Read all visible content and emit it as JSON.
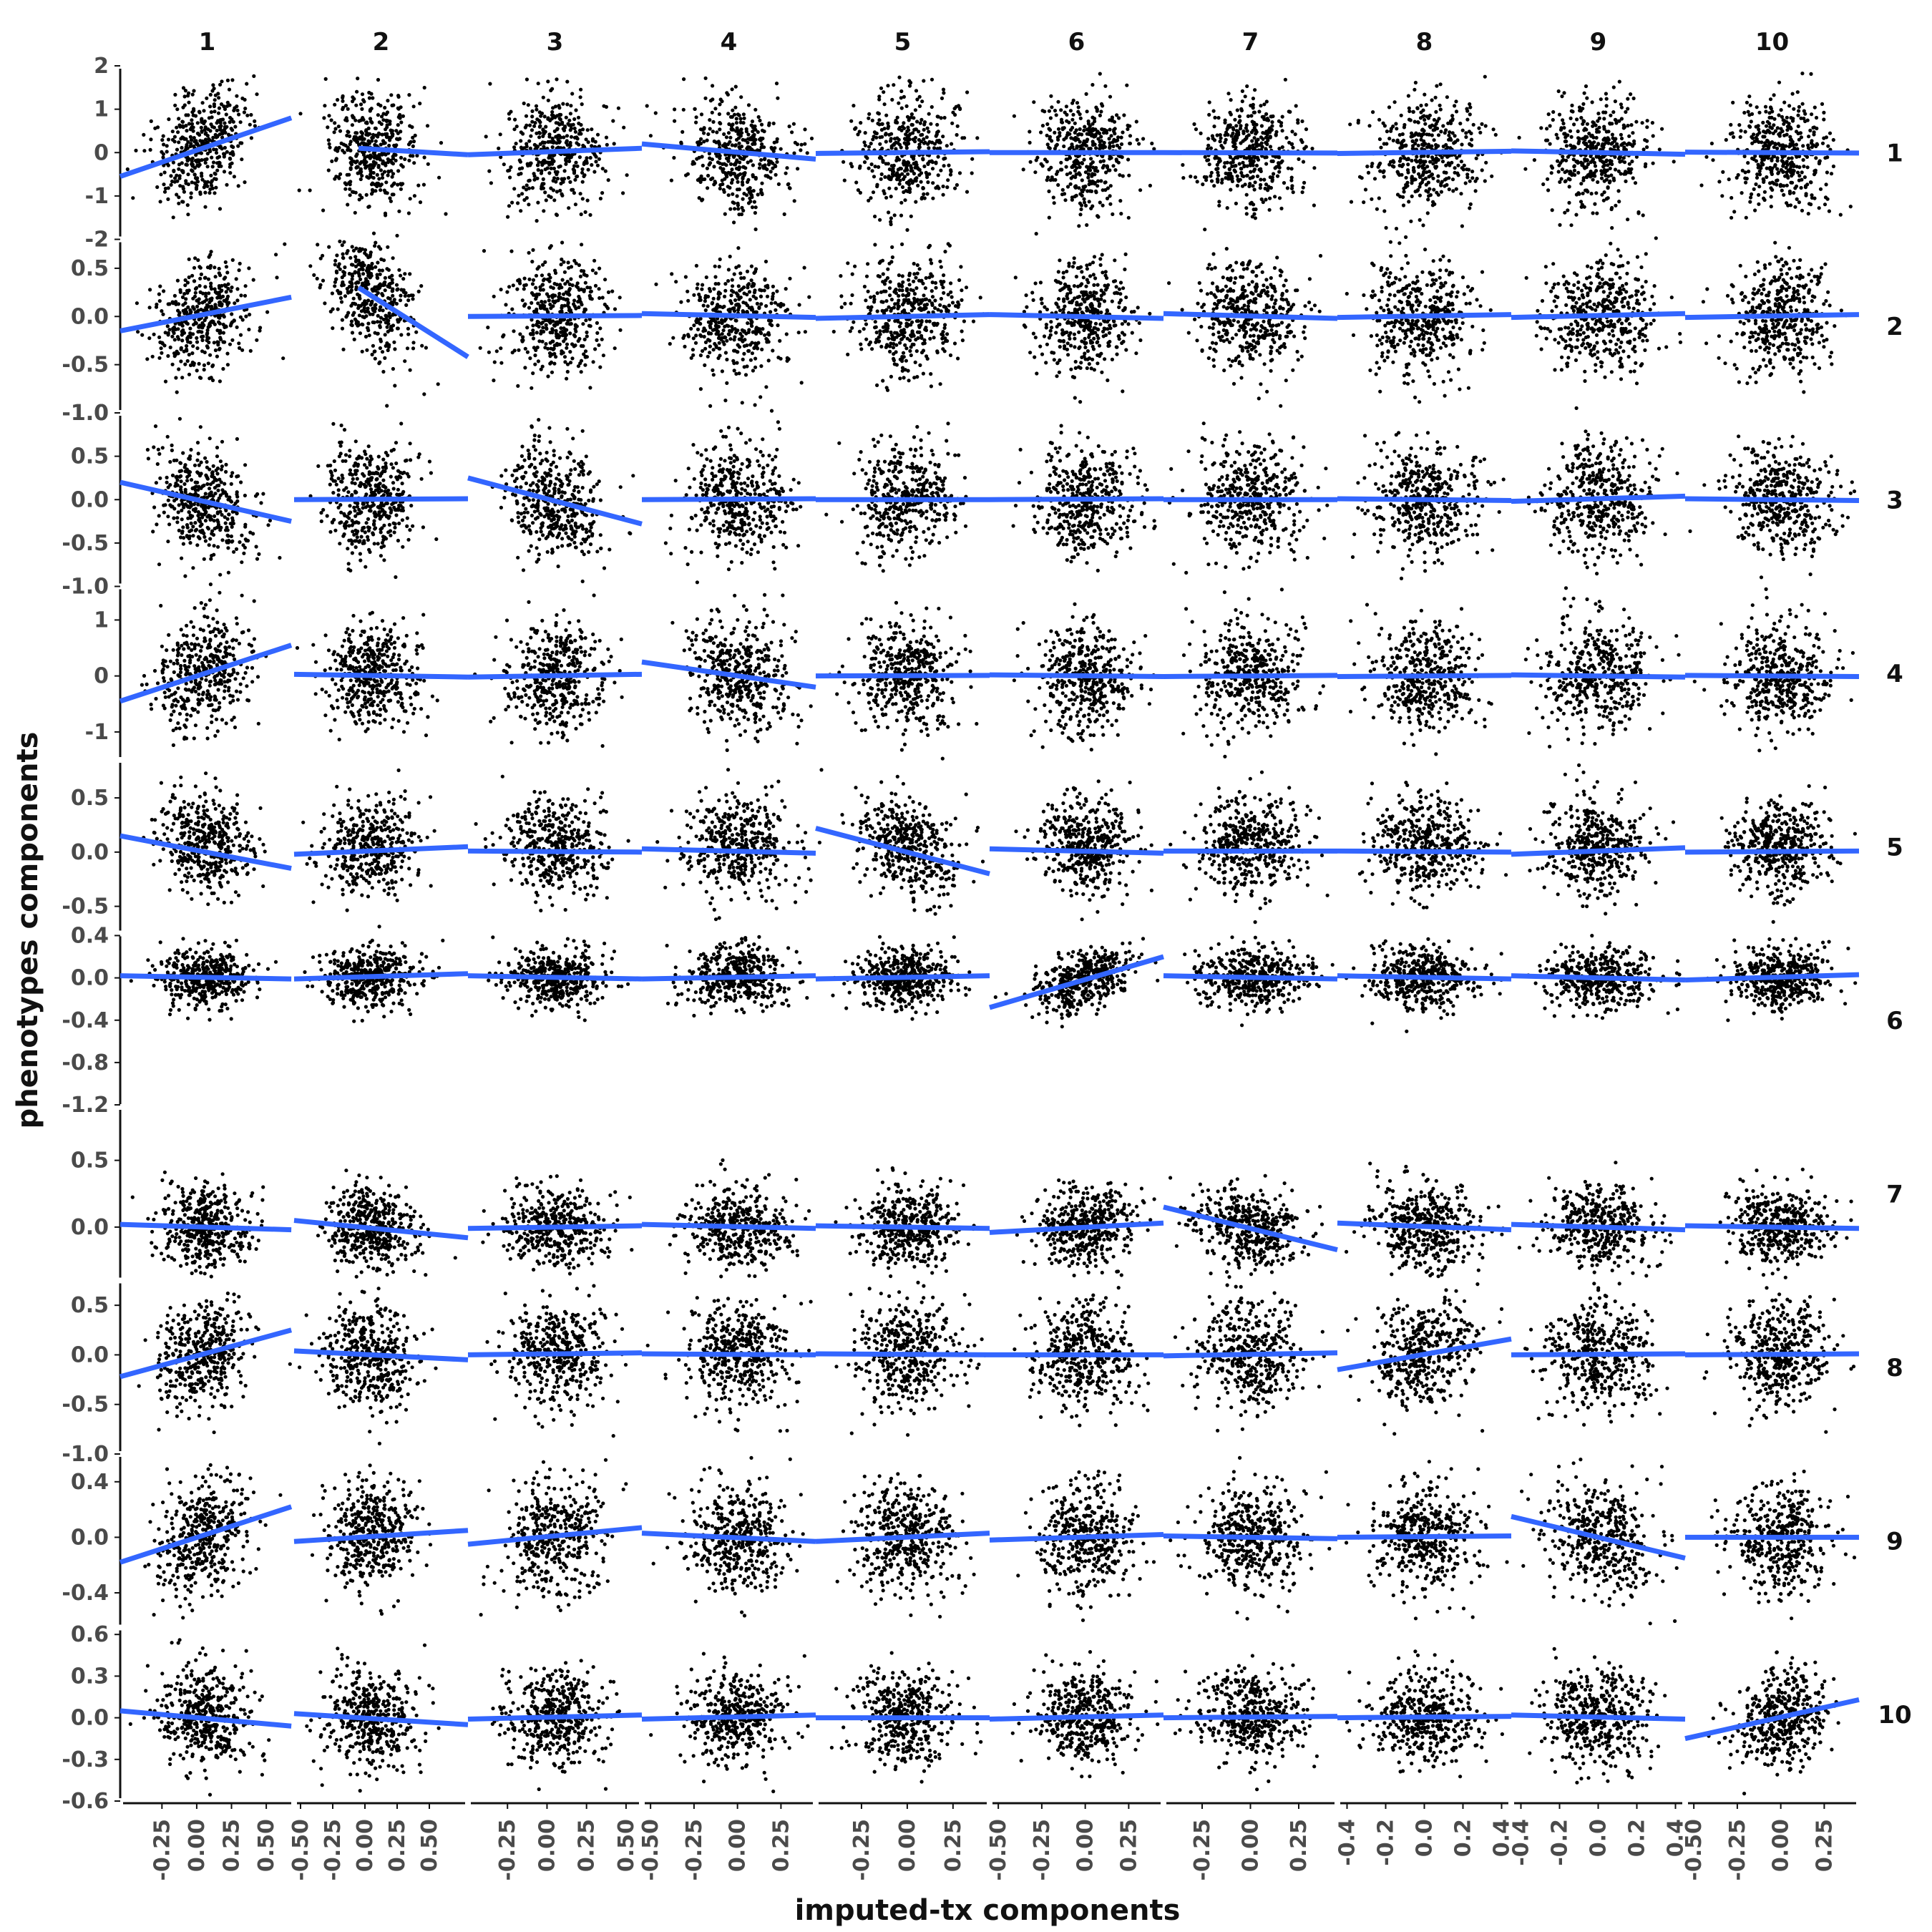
{
  "chart_data": {
    "type": "scatter",
    "layout": "facet-grid 10x10, scatter with linear fit per panel",
    "xlabel": "imputed-tx components",
    "ylabel": "phenotypes components",
    "col_labels": [
      "1",
      "2",
      "3",
      "4",
      "5",
      "6",
      "7",
      "8",
      "9",
      "10"
    ],
    "row_labels": [
      "1",
      "2",
      "3",
      "4",
      "5",
      "6",
      "7",
      "8",
      "9",
      "10"
    ],
    "point_color": "#000000",
    "fit_color": "#3366ff",
    "x_axes": [
      {
        "range": [
          -0.55,
          0.7
        ],
        "ticks": [
          "-0.25",
          "0.00",
          "0.25",
          "0.50"
        ]
      },
      {
        "range": [
          -0.55,
          0.8
        ],
        "ticks": [
          "-0.50",
          "-0.25",
          "0.00",
          "0.25",
          "0.50"
        ]
      },
      {
        "range": [
          -0.5,
          0.6
        ],
        "ticks": [
          "-0.25",
          "0.00",
          "0.25",
          "0.50"
        ]
      },
      {
        "range": [
          -0.55,
          0.45
        ],
        "ticks": [
          "-0.50",
          "-0.25",
          "0.00",
          "0.25"
        ]
      },
      {
        "range": [
          -0.5,
          0.45
        ],
        "ticks": [
          "-0.25",
          "0.00",
          "0.25"
        ]
      },
      {
        "range": [
          -0.55,
          0.45
        ],
        "ticks": [
          "-0.50",
          "-0.25",
          "0.00",
          "0.25"
        ]
      },
      {
        "range": [
          -0.45,
          0.45
        ],
        "ticks": [
          "-0.25",
          "0.00",
          "0.25"
        ]
      },
      {
        "range": [
          -0.45,
          0.45
        ],
        "ticks": [
          "-0.4",
          "-0.2",
          "0.0",
          "0.2",
          "0.4"
        ]
      },
      {
        "range": [
          -0.45,
          0.45
        ],
        "ticks": [
          "-0.4",
          "-0.2",
          "0.0",
          "0.2",
          "0.4"
        ]
      },
      {
        "range": [
          -0.55,
          0.45
        ],
        "ticks": [
          "-0.50",
          "-0.25",
          "0.00",
          "0.25"
        ]
      }
    ],
    "y_axes": [
      {
        "range": [
          -2.0,
          2.0
        ],
        "ticks": [
          "2",
          "1",
          "0",
          "-1",
          "-2"
        ]
      },
      {
        "range": [
          -1.0,
          0.8
        ],
        "ticks": [
          "0.5",
          "0.0",
          "-0.5",
          "-1.0"
        ]
      },
      {
        "range": [
          -1.0,
          1.0
        ],
        "ticks": [
          "1.0",
          "0.5",
          "0.0",
          "-0.5",
          "-1.0"
        ]
      },
      {
        "range": [
          -1.5,
          1.6
        ],
        "ticks": [
          "1",
          "0",
          "-1"
        ]
      },
      {
        "range": [
          -0.75,
          0.85
        ],
        "ticks": [
          "0.5",
          "0.0",
          "-0.5"
        ]
      },
      {
        "range": [
          -1.22,
          0.42
        ],
        "ticks": [
          "0.4",
          "0.0",
          "-0.4",
          "-0.8",
          "-1.2"
        ]
      },
      {
        "range": [
          -0.4,
          0.9
        ],
        "ticks": [
          "0.5",
          "0.0"
        ]
      },
      {
        "range": [
          -1.0,
          0.75
        ],
        "ticks": [
          "0.5",
          "0.0",
          "-0.5",
          "-1.0"
        ]
      },
      {
        "range": [
          -0.65,
          0.6
        ],
        "ticks": [
          "0.4",
          "0.0",
          "-0.4"
        ]
      },
      {
        "range": [
          -0.6,
          0.65
        ],
        "ticks": [
          "0.6",
          "0.3",
          "0.0",
          "-0.3",
          "-0.6"
        ]
      }
    ],
    "point_spread": {
      "x_center": [
        0.05,
        0.05,
        0.05,
        0.0,
        0.0,
        0.0,
        0.0,
        0.0,
        0.0,
        0.0
      ],
      "x_sd": [
        0.17,
        0.18,
        0.16,
        0.15,
        0.14,
        0.14,
        0.14,
        0.14,
        0.14,
        0.14
      ],
      "y_center": [
        0.0,
        0.0,
        0.0,
        0.0,
        0.05,
        0.0,
        0.0,
        0.0,
        0.0,
        0.0
      ],
      "y_sd": [
        0.65,
        0.3,
        0.32,
        0.5,
        0.22,
        0.14,
        0.15,
        0.27,
        0.2,
        0.17
      ],
      "points_per_panel": 420
    },
    "fit_lines": [
      [
        [
          -0.55,
          -0.55,
          0.68,
          0.8
        ],
        [
          -0.05,
          0.1,
          0.8,
          -0.05
        ],
        [
          -0.5,
          -0.05,
          0.6,
          0.1
        ],
        [
          -0.55,
          0.2,
          0.45,
          -0.15
        ],
        [
          -0.5,
          -0.02,
          0.45,
          0.02
        ],
        [
          -0.55,
          0.0,
          0.45,
          0.0
        ],
        [
          -0.45,
          0.0,
          0.45,
          -0.01
        ],
        [
          -0.45,
          -0.02,
          0.45,
          0.03
        ],
        [
          -0.45,
          0.04,
          0.45,
          -0.04
        ],
        [
          -0.55,
          0.01,
          0.45,
          -0.01
        ]
      ],
      [
        [
          -0.55,
          -0.15,
          0.68,
          0.2
        ],
        [
          -0.05,
          0.3,
          0.8,
          -0.42
        ],
        [
          -0.5,
          0.0,
          0.6,
          0.01
        ],
        [
          -0.55,
          0.03,
          0.45,
          -0.01
        ],
        [
          -0.5,
          -0.02,
          0.45,
          0.02
        ],
        [
          -0.55,
          0.02,
          0.45,
          -0.02
        ],
        [
          -0.45,
          0.03,
          0.45,
          -0.02
        ],
        [
          -0.45,
          -0.01,
          0.45,
          0.02
        ],
        [
          -0.45,
          -0.01,
          0.45,
          0.03
        ],
        [
          -0.55,
          -0.01,
          0.45,
          0.02
        ]
      ],
      [
        [
          -0.55,
          0.2,
          0.68,
          -0.25
        ],
        [
          -0.55,
          0.0,
          0.8,
          0.01
        ],
        [
          -0.5,
          0.25,
          0.6,
          -0.28
        ],
        [
          -0.55,
          0.0,
          0.45,
          0.01
        ],
        [
          -0.5,
          0.0,
          0.45,
          0.0
        ],
        [
          -0.55,
          0.0,
          0.45,
          0.01
        ],
        [
          -0.45,
          0.0,
          0.45,
          0.0
        ],
        [
          -0.45,
          0.01,
          0.45,
          -0.01
        ],
        [
          -0.45,
          -0.02,
          0.45,
          0.04
        ],
        [
          -0.55,
          0.01,
          0.45,
          -0.01
        ]
      ],
      [
        [
          -0.55,
          -0.45,
          0.68,
          0.55
        ],
        [
          -0.55,
          0.03,
          0.8,
          -0.02
        ],
        [
          -0.5,
          -0.02,
          0.6,
          0.03
        ],
        [
          -0.55,
          0.25,
          0.45,
          -0.2
        ],
        [
          -0.5,
          0.0,
          0.45,
          0.01
        ],
        [
          -0.55,
          0.02,
          0.45,
          -0.01
        ],
        [
          -0.45,
          -0.01,
          0.45,
          0.01
        ],
        [
          -0.45,
          -0.01,
          0.45,
          0.01
        ],
        [
          -0.45,
          0.02,
          0.45,
          -0.02
        ],
        [
          -0.55,
          0.01,
          0.45,
          -0.01
        ]
      ],
      [
        [
          -0.55,
          0.15,
          0.68,
          -0.15
        ],
        [
          -0.55,
          -0.02,
          0.8,
          0.05
        ],
        [
          -0.5,
          0.01,
          0.6,
          0.0
        ],
        [
          -0.55,
          0.03,
          0.45,
          -0.01
        ],
        [
          -0.5,
          0.22,
          0.45,
          -0.2
        ],
        [
          -0.55,
          0.03,
          0.45,
          -0.01
        ],
        [
          -0.45,
          0.01,
          0.45,
          0.01
        ],
        [
          -0.45,
          0.01,
          0.45,
          0.0
        ],
        [
          -0.45,
          -0.02,
          0.45,
          0.04
        ],
        [
          -0.55,
          0.0,
          0.45,
          0.01
        ]
      ],
      [
        [
          -0.55,
          0.02,
          0.68,
          -0.01
        ],
        [
          -0.55,
          -0.01,
          0.8,
          0.04
        ],
        [
          -0.5,
          0.02,
          0.6,
          -0.01
        ],
        [
          -0.55,
          -0.01,
          0.45,
          0.02
        ],
        [
          -0.5,
          -0.01,
          0.45,
          0.02
        ],
        [
          -0.55,
          -0.28,
          0.45,
          0.2
        ],
        [
          -0.45,
          0.02,
          0.45,
          -0.01
        ],
        [
          -0.45,
          0.02,
          0.45,
          -0.01
        ],
        [
          -0.45,
          0.02,
          0.45,
          -0.02
        ],
        [
          -0.55,
          -0.02,
          0.45,
          0.03
        ]
      ],
      [
        [
          -0.55,
          0.02,
          0.68,
          -0.02
        ],
        [
          -0.55,
          0.05,
          0.8,
          -0.08
        ],
        [
          -0.5,
          -0.01,
          0.6,
          0.01
        ],
        [
          -0.55,
          0.02,
          0.45,
          -0.01
        ],
        [
          -0.5,
          0.01,
          0.45,
          -0.01
        ],
        [
          -0.55,
          -0.04,
          0.45,
          0.03
        ],
        [
          -0.45,
          0.15,
          0.45,
          -0.17
        ],
        [
          -0.45,
          0.03,
          0.45,
          -0.02
        ],
        [
          -0.45,
          0.02,
          0.45,
          -0.02
        ],
        [
          -0.55,
          0.01,
          0.45,
          -0.01
        ]
      ],
      [
        [
          -0.55,
          -0.22,
          0.68,
          0.25
        ],
        [
          -0.55,
          0.04,
          0.8,
          -0.05
        ],
        [
          -0.5,
          0.0,
          0.6,
          0.02
        ],
        [
          -0.55,
          0.01,
          0.45,
          0.0
        ],
        [
          -0.5,
          0.01,
          0.45,
          0.0
        ],
        [
          -0.55,
          0.0,
          0.45,
          0.0
        ],
        [
          -0.45,
          -0.01,
          0.45,
          0.02
        ],
        [
          -0.45,
          -0.15,
          0.45,
          0.16
        ],
        [
          -0.45,
          0.0,
          0.45,
          0.01
        ],
        [
          -0.55,
          0.0,
          0.45,
          0.01
        ]
      ],
      [
        [
          -0.55,
          -0.18,
          0.68,
          0.22
        ],
        [
          -0.55,
          -0.03,
          0.8,
          0.05
        ],
        [
          -0.5,
          -0.05,
          0.6,
          0.07
        ],
        [
          -0.55,
          0.03,
          0.45,
          -0.03
        ],
        [
          -0.5,
          -0.03,
          0.45,
          0.03
        ],
        [
          -0.55,
          -0.02,
          0.45,
          0.02
        ],
        [
          -0.45,
          0.01,
          0.45,
          -0.01
        ],
        [
          -0.45,
          0.0,
          0.45,
          0.01
        ],
        [
          -0.45,
          0.15,
          0.45,
          -0.15
        ],
        [
          -0.55,
          0.0,
          0.45,
          0.0
        ]
      ],
      [
        [
          -0.55,
          0.05,
          0.68,
          -0.06
        ],
        [
          -0.55,
          0.03,
          0.8,
          -0.05
        ],
        [
          -0.5,
          -0.01,
          0.6,
          0.02
        ],
        [
          -0.55,
          -0.01,
          0.45,
          0.02
        ],
        [
          -0.5,
          0.0,
          0.45,
          0.0
        ],
        [
          -0.55,
          -0.01,
          0.45,
          0.02
        ],
        [
          -0.45,
          0.0,
          0.45,
          0.01
        ],
        [
          -0.45,
          0.0,
          0.45,
          0.01
        ],
        [
          -0.45,
          0.02,
          0.45,
          -0.01
        ],
        [
          -0.55,
          -0.15,
          0.45,
          0.13
        ]
      ]
    ]
  }
}
